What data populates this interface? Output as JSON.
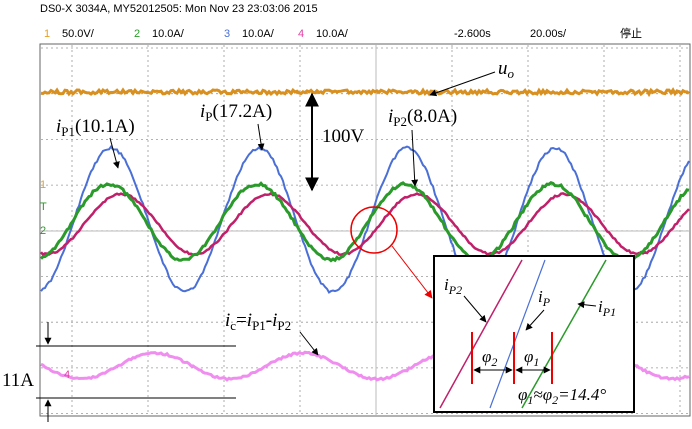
{
  "header": {
    "title": "DS0-X 3034A, MY52012505: Mon Nov 23 23:03:06 2015",
    "channels": [
      {
        "num": "1",
        "scale": "50.0V/"
      },
      {
        "num": "2",
        "scale": "10.0A/"
      },
      {
        "num": "3",
        "scale": "10.0A/"
      },
      {
        "num": "4",
        "scale": "10.0A/"
      }
    ],
    "delay": "-2.600s",
    "timebase": "20.00s/",
    "status": "停止"
  },
  "markers": [
    "1",
    "T",
    "2",
    "4"
  ],
  "annotations": {
    "uo": {
      "main": "u",
      "sub": "o"
    },
    "ip1": {
      "main": "i",
      "sub": "P1",
      "rest": "(10.1A)"
    },
    "ip": {
      "main": "i",
      "sub": "P",
      "rest": "(17.2A)"
    },
    "ip2": {
      "main": "i",
      "sub": "P2",
      "rest": "(8.0A)"
    },
    "volt": "100V",
    "ic": {
      "main": "i",
      "sub": "c",
      "eq": "=",
      "a": "i",
      "asub": "P1",
      "minus": "-",
      "b": "i",
      "bsub": "P2"
    },
    "amp": "11A"
  },
  "inset": {
    "ip2": {
      "main": "i",
      "sub": "P2"
    },
    "ip": {
      "main": "i",
      "sub": "P"
    },
    "ip1": {
      "main": "i",
      "sub": "P1"
    },
    "phi2": {
      "main": "φ",
      "sub": "2"
    },
    "phi1": {
      "main": "φ",
      "sub": "1"
    },
    "relation": {
      "a": "φ",
      "asub": "1",
      "mid": "≈",
      "b": "φ",
      "bsub": "2",
      "rest": "=14.4°"
    }
  }
}
